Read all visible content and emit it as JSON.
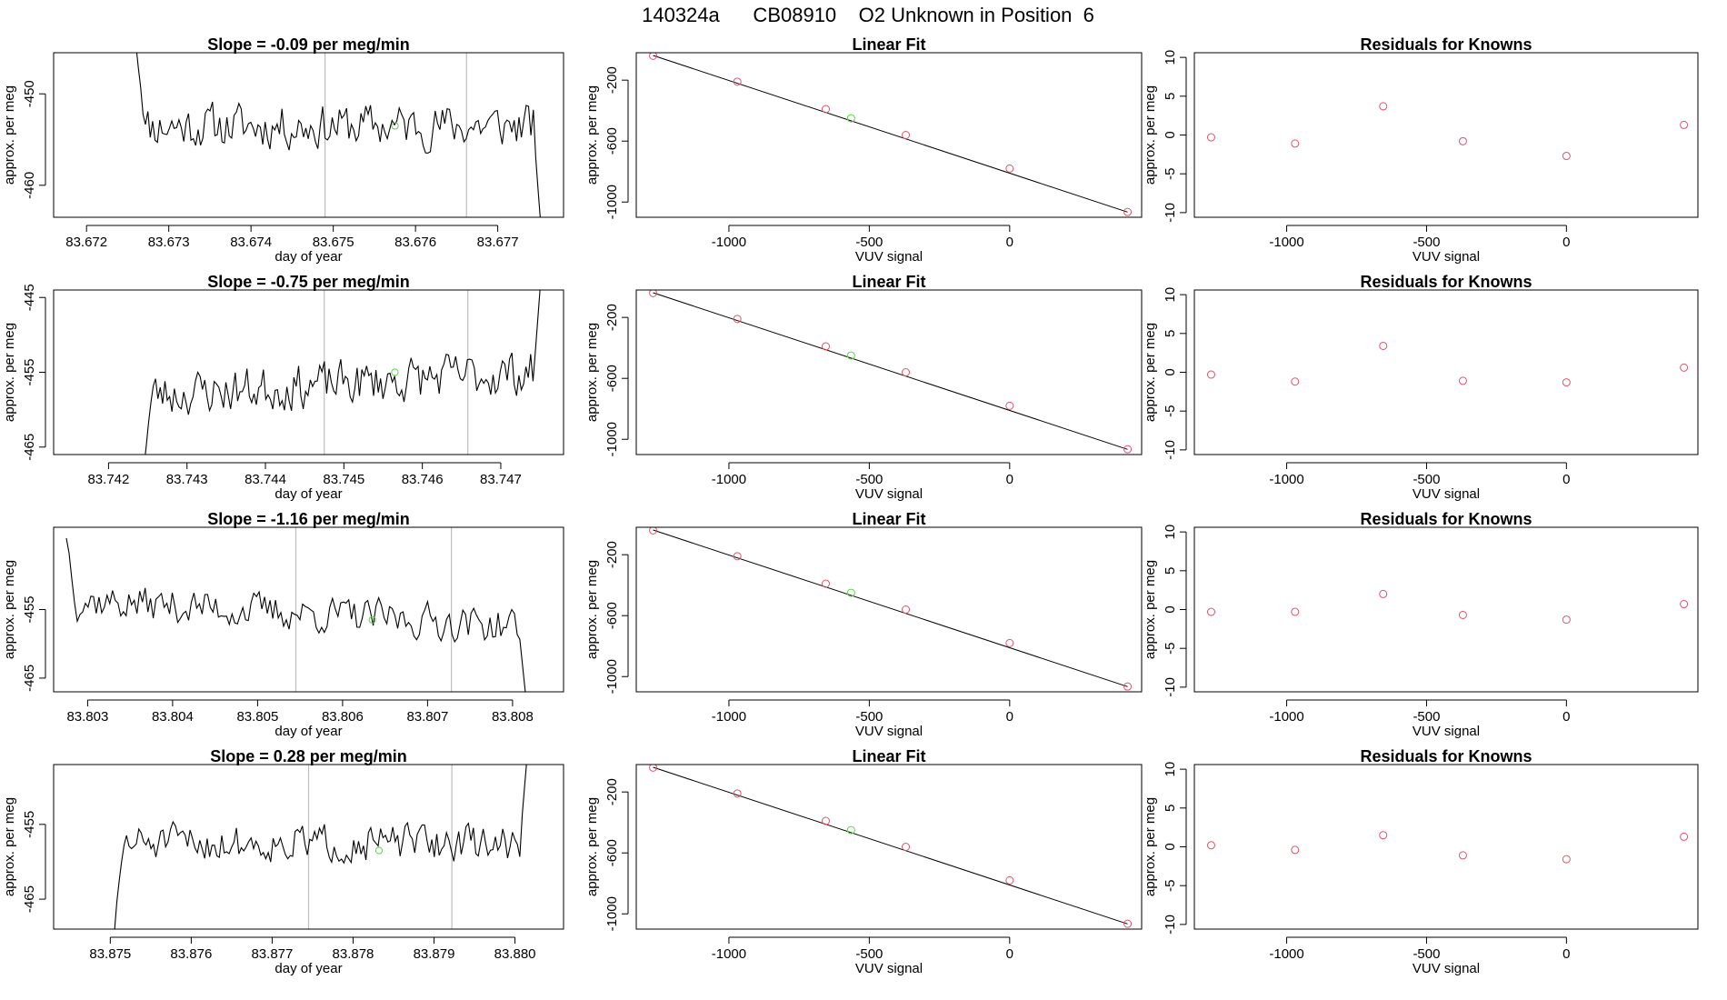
{
  "figure_title": "140324a      CB08910    O2 Unknown in Position  6",
  "colors": {
    "trace": "#000000",
    "known": "#DF536B",
    "unknown": "#61D04F",
    "marker_line": "#BEBEBE",
    "fitline": "#000000"
  },
  "chart_data": [
    {
      "id": "ts1",
      "type": "line",
      "title": "Slope =  -0.09  per meg/min",
      "xlabel": "day of year",
      "ylabel": "approx. per meg",
      "xlim": [
        83.6716,
        83.6778
      ],
      "ylim": [
        -463.5,
        -445.5
      ],
      "xticks": [
        83.672,
        83.673,
        83.674,
        83.675,
        83.676,
        83.677
      ],
      "xtick_labels": [
        "83.672",
        "83.673",
        "83.674",
        "83.675",
        "83.676",
        "83.677"
      ],
      "yticks": [
        -450,
        -460
      ],
      "ytick_labels": [
        "-450",
        "-460"
      ],
      "start": 83.6726,
      "end": 83.67752,
      "markers": [
        83.6749,
        83.67662
      ],
      "unknown_point": {
        "x": 83.67575,
        "y": -453.5
      },
      "trace_params": {
        "base": -453.5,
        "amp": 2.6,
        "seed": 11,
        "head_y": -444,
        "tail_y": -464
      }
    },
    {
      "id": "fit1",
      "type": "scatter",
      "title": "Linear Fit",
      "xlabel": "VUV signal",
      "ylabel": "approx. per meg",
      "xlim": [
        -1330,
        470
      ],
      "ylim": [
        -1100,
        -20
      ],
      "xticks": [
        -1000,
        -500,
        0
      ],
      "xtick_labels": [
        "-1000",
        "-500",
        "0"
      ],
      "yticks": [
        -200,
        -600,
        -1000
      ],
      "ytick_labels": [
        "-200",
        "-600",
        "-1000"
      ],
      "known_x": [
        -1270,
        -970,
        -655,
        -370,
        0,
        420
      ],
      "known_y": [
        -40,
        -210,
        -390,
        -560,
        -780,
        -1065
      ],
      "unknown_x": [
        -565
      ],
      "unknown_y": [
        -450
      ],
      "fitline": {
        "x": [
          -1270,
          420
        ],
        "y": [
          -38,
          -1066
        ]
      }
    },
    {
      "id": "res1",
      "type": "scatter",
      "title": "Residuals for Knowns",
      "xlabel": "VUV signal",
      "ylabel": "approx. per meg",
      "xlim": [
        -1330,
        470
      ],
      "ylim": [
        -10.6,
        10.6
      ],
      "xticks": [
        -1000,
        -500,
        0
      ],
      "xtick_labels": [
        "-1000",
        "-500",
        "0"
      ],
      "yticks": [
        10,
        5,
        0,
        -5,
        -10
      ],
      "ytick_labels": [
        "10",
        "5",
        "0",
        "-5",
        "-10"
      ],
      "x": [
        -1270,
        -970,
        -655,
        -370,
        0,
        420
      ],
      "y": [
        -0.3,
        -1.1,
        3.7,
        -0.8,
        -2.7,
        1.3
      ]
    },
    {
      "id": "ts2",
      "type": "line",
      "title": "Slope =  -0.75  per meg/min",
      "xlabel": "day of year",
      "ylabel": "approx. per meg",
      "xlim": [
        83.7413,
        83.7478
      ],
      "ylim": [
        -466,
        -444
      ],
      "xticks": [
        83.742,
        83.743,
        83.744,
        83.745,
        83.746,
        83.747
      ],
      "xtick_labels": [
        "83.742",
        "83.743",
        "83.744",
        "83.745",
        "83.746",
        "83.747"
      ],
      "yticks": [
        -445,
        -455,
        -465
      ],
      "ytick_labels": [
        "-445",
        "-455",
        "-465"
      ],
      "start": 83.74245,
      "end": 83.7475,
      "markers": [
        83.74475,
        83.74658
      ],
      "unknown_point": {
        "x": 83.74565,
        "y": -455
      },
      "trace_params": {
        "base": -456.5,
        "amp": 3.2,
        "seed": 23,
        "head_y": -467,
        "tail_y": -444,
        "trend": 0.8
      }
    },
    {
      "id": "fit2",
      "type": "scatter",
      "title": "Linear Fit",
      "xlabel": "VUV signal",
      "ylabel": "approx. per meg",
      "xlim": [
        -1330,
        470
      ],
      "ylim": [
        -1100,
        -20
      ],
      "xticks": [
        -1000,
        -500,
        0
      ],
      "xtick_labels": [
        "-1000",
        "-500",
        "0"
      ],
      "yticks": [
        -200,
        -600,
        -1000
      ],
      "ytick_labels": [
        "-200",
        "-600",
        "-1000"
      ],
      "known_x": [
        -1270,
        -970,
        -655,
        -370,
        0,
        420
      ],
      "known_y": [
        -40,
        -210,
        -390,
        -560,
        -780,
        -1065
      ],
      "unknown_x": [
        -565
      ],
      "unknown_y": [
        -450
      ],
      "fitline": {
        "x": [
          -1270,
          420
        ],
        "y": [
          -38,
          -1066
        ]
      }
    },
    {
      "id": "res2",
      "type": "scatter",
      "title": "Residuals for Knowns",
      "xlabel": "VUV signal",
      "ylabel": "approx. per meg",
      "xlim": [
        -1330,
        470
      ],
      "ylim": [
        -10.6,
        10.6
      ],
      "xticks": [
        -1000,
        -500,
        0
      ],
      "xtick_labels": [
        "-1000",
        "-500",
        "0"
      ],
      "yticks": [
        10,
        5,
        0,
        -5,
        -10
      ],
      "ytick_labels": [
        "10",
        "5",
        "0",
        "-5",
        "-10"
      ],
      "x": [
        -1270,
        -970,
        -655,
        -370,
        0,
        420
      ],
      "y": [
        -0.3,
        -1.2,
        3.4,
        -1.1,
        -1.3,
        0.6
      ]
    },
    {
      "id": "ts3",
      "type": "line",
      "title": "Slope =  -1.16  per meg/min",
      "xlabel": "day of year",
      "ylabel": "approx. per meg",
      "xlim": [
        83.8026,
        83.8086
      ],
      "ylim": [
        -467,
        -443
      ],
      "xticks": [
        83.803,
        83.804,
        83.805,
        83.806,
        83.807,
        83.808
      ],
      "xtick_labels": [
        "83.803",
        "83.804",
        "83.805",
        "83.806",
        "83.807",
        "83.808"
      ],
      "yticks": [
        -455,
        -465
      ],
      "ytick_labels": [
        "-455",
        "-465"
      ],
      "start": 83.80275,
      "end": 83.80815,
      "markers": [
        83.80545,
        83.80728
      ],
      "unknown_point": {
        "x": 83.80635,
        "y": -456.5
      },
      "trace_params": {
        "base": -455.5,
        "amp": 2.8,
        "seed": 37,
        "head_y": -444,
        "tail_y": -467,
        "trend": -1.0
      }
    },
    {
      "id": "fit3",
      "type": "scatter",
      "title": "Linear Fit",
      "xlabel": "VUV signal",
      "ylabel": "approx. per meg",
      "xlim": [
        -1330,
        470
      ],
      "ylim": [
        -1100,
        -20
      ],
      "xticks": [
        -1000,
        -500,
        0
      ],
      "xtick_labels": [
        "-1000",
        "-500",
        "0"
      ],
      "yticks": [
        -200,
        -600,
        -1000
      ],
      "ytick_labels": [
        "-200",
        "-600",
        "-1000"
      ],
      "known_x": [
        -1270,
        -970,
        -655,
        -370,
        0,
        420
      ],
      "known_y": [
        -40,
        -210,
        -390,
        -560,
        -780,
        -1065
      ],
      "unknown_x": [
        -565
      ],
      "unknown_y": [
        -450
      ],
      "fitline": {
        "x": [
          -1270,
          420
        ],
        "y": [
          -38,
          -1066
        ]
      }
    },
    {
      "id": "res3",
      "type": "scatter",
      "title": "Residuals for Knowns",
      "xlabel": "VUV signal",
      "ylabel": "approx. per meg",
      "xlim": [
        -1330,
        470
      ],
      "ylim": [
        -10.6,
        10.6
      ],
      "xticks": [
        -1000,
        -500,
        0
      ],
      "xtick_labels": [
        "-1000",
        "-500",
        "0"
      ],
      "yticks": [
        10,
        5,
        0,
        -5,
        -10
      ],
      "ytick_labels": [
        "10",
        "5",
        "0",
        "-5",
        "-10"
      ],
      "x": [
        -1270,
        -970,
        -655,
        -370,
        0,
        420
      ],
      "y": [
        -0.3,
        -0.3,
        2.0,
        -0.7,
        -1.3,
        0.7
      ]
    },
    {
      "id": "ts4",
      "type": "line",
      "title": "Slope =  0.28  per meg/min",
      "xlabel": "day of year",
      "ylabel": "approx. per meg",
      "xlim": [
        83.8743,
        83.8806
      ],
      "ylim": [
        -469,
        -447
      ],
      "xticks": [
        83.875,
        83.876,
        83.877,
        83.878,
        83.879,
        83.88
      ],
      "xtick_labels": [
        "83.875",
        "83.876",
        "83.877",
        "83.878",
        "83.879",
        "83.880"
      ],
      "yticks": [
        -455,
        -465
      ],
      "ytick_labels": [
        "-455",
        "-465"
      ],
      "start": 83.87505,
      "end": 83.88015,
      "markers": [
        83.87745,
        83.87922
      ],
      "unknown_point": {
        "x": 83.87832,
        "y": -458.5
      },
      "trace_params": {
        "base": -457.5,
        "amp": 2.6,
        "seed": 51,
        "head_y": -469,
        "tail_y": -446
      }
    },
    {
      "id": "fit4",
      "type": "scatter",
      "title": "Linear Fit",
      "xlabel": "VUV signal",
      "ylabel": "approx. per meg",
      "xlim": [
        -1330,
        470
      ],
      "ylim": [
        -1100,
        -20
      ],
      "xticks": [
        -1000,
        -500,
        0
      ],
      "xtick_labels": [
        "-1000",
        "-500",
        "0"
      ],
      "yticks": [
        -200,
        -600,
        -1000
      ],
      "ytick_labels": [
        "-200",
        "-600",
        "-1000"
      ],
      "known_x": [
        -1270,
        -970,
        -655,
        -370,
        0,
        420
      ],
      "known_y": [
        -40,
        -210,
        -390,
        -560,
        -780,
        -1065
      ],
      "unknown_x": [
        -565
      ],
      "unknown_y": [
        -450
      ],
      "fitline": {
        "x": [
          -1270,
          420
        ],
        "y": [
          -38,
          -1066
        ]
      }
    },
    {
      "id": "res4",
      "type": "scatter",
      "title": "Residuals for Knowns",
      "xlabel": "VUV signal",
      "ylabel": "approx. per meg",
      "xlim": [
        -1330,
        470
      ],
      "ylim": [
        -10.6,
        10.6
      ],
      "xticks": [
        -1000,
        -500,
        0
      ],
      "xtick_labels": [
        "-1000",
        "-500",
        "0"
      ],
      "yticks": [
        10,
        5,
        0,
        -5,
        -10
      ],
      "ytick_labels": [
        "10",
        "5",
        "0",
        "-5",
        "-10"
      ],
      "x": [
        -1270,
        -970,
        -655,
        -370,
        0,
        420
      ],
      "y": [
        0.2,
        -0.4,
        1.5,
        -1.1,
        -1.6,
        1.3
      ]
    }
  ]
}
